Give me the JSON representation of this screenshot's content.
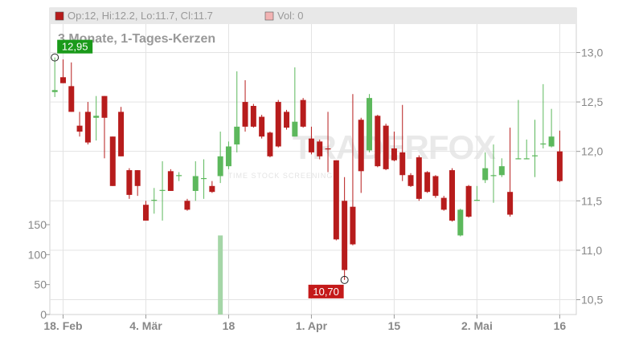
{
  "chart_data": {
    "type": "candlestick",
    "header": "Op:12, Hi:12.2, Lo:11.7, Cl:11.7",
    "volume_header": "Vol: 0",
    "subtitle": "3 Monate, 1-Tages-Kerzen",
    "watermark": "TRADERFOX",
    "watermark_sub": "TIME STOCK SCREENING",
    "up_color": "#5cb85c",
    "down_color": "#b71c1c",
    "volume_color": "#a5d6a7",
    "xlim": [
      -0.6,
      63
    ],
    "xticks": [
      {
        "value": 1,
        "label": "18. Feb"
      },
      {
        "value": 11,
        "label": "4. Mär"
      },
      {
        "value": 21,
        "label": "18"
      },
      {
        "value": 31,
        "label": "1. Apr"
      },
      {
        "value": 41,
        "label": "15"
      },
      {
        "value": 51,
        "label": "2. Mai"
      },
      {
        "value": 61,
        "label": "16"
      }
    ],
    "ylim": [
      10.35,
      13.45
    ],
    "yticks": [
      {
        "value": 13,
        "label": "13,0"
      },
      {
        "value": 12.5,
        "label": "12,5"
      },
      {
        "value": 12,
        "label": "12,0"
      },
      {
        "value": 11.5,
        "label": "11,5"
      },
      {
        "value": 11,
        "label": "11,0"
      },
      {
        "value": 10.5,
        "label": "10,5"
      }
    ],
    "y2lim": [
      0,
      150
    ],
    "y2ticks": [
      0,
      50,
      100,
      150
    ],
    "high_label": {
      "value": 12.95,
      "label": "12,95"
    },
    "low_label": {
      "value": 10.7,
      "label": "10,70"
    },
    "open": [
      12.6,
      12.75,
      12.66,
      12.26,
      12.4,
      12.34,
      12.56,
      12.15,
      12.4,
      11.81,
      11.81,
      11.46,
      11.5,
      11.6,
      11.8,
      11.75,
      11.5,
      11.6,
      11.72,
      11.65,
      11.75,
      11.85,
      12.07,
      12.5,
      12.46,
      12.35,
      12.19,
      12.5,
      12.4,
      12.15,
      12.52,
      12.13,
      12.1,
      12.03,
      11.91,
      11.5,
      11.44,
      12.32,
      12.01,
      12.36,
      12.26,
      12.03,
      11.99,
      11.76,
      11.94,
      11.79,
      11.75,
      11.53,
      11.81,
      11.15,
      11.65,
      11.5,
      11.71,
      11.75,
      11.76,
      11.59,
      11.92,
      11.92,
      11.95,
      12.07,
      12.05,
      12.0
    ],
    "high": [
      12.95,
      12.93,
      12.9,
      12.4,
      12.5,
      12.56,
      12.56,
      12.15,
      12.45,
      11.83,
      11.81,
      11.5,
      11.63,
      11.9,
      11.82,
      11.79,
      11.52,
      11.9,
      11.92,
      11.7,
      12.2,
      12.1,
      12.81,
      12.72,
      12.48,
      12.37,
      12.2,
      12.52,
      12.42,
      12.85,
      12.54,
      12.25,
      12.12,
      12.4,
      11.91,
      11.74,
      12.58,
      12.34,
      12.58,
      12.37,
      12.28,
      12.2,
      12.47,
      11.78,
      11.96,
      11.8,
      11.76,
      11.55,
      11.83,
      11.42,
      11.66,
      11.65,
      11.99,
      12.07,
      11.93,
      12.24,
      12.52,
      12.12,
      12.32,
      12.68,
      12.43,
      12.21
    ],
    "low": [
      12.55,
      12.69,
      12.4,
      12.15,
      12.07,
      12.11,
      11.93,
      11.65,
      11.95,
      11.52,
      11.55,
      11.3,
      11.37,
      11.3,
      11.6,
      11.7,
      11.4,
      11.5,
      11.52,
      11.58,
      11.68,
      11.82,
      11.99,
      12.2,
      12.24,
      12.13,
      11.94,
      12.04,
      12.22,
      12.15,
      12.24,
      11.97,
      11.92,
      11.79,
      11.1,
      10.7,
      11.05,
      11.58,
      11.99,
      11.84,
      11.81,
      11.9,
      11.7,
      11.64,
      11.5,
      11.58,
      11.53,
      11.4,
      11.29,
      11.14,
      11.33,
      11.5,
      11.68,
      11.48,
      11.74,
      11.34,
      11.92,
      11.92,
      11.74,
      12.03,
      12.04,
      11.69
    ],
    "close": [
      12.62,
      12.69,
      12.4,
      12.2,
      12.09,
      12.36,
      12.34,
      11.65,
      11.95,
      11.56,
      11.65,
      11.3,
      11.51,
      11.61,
      11.6,
      11.76,
      11.41,
      11.75,
      11.73,
      11.59,
      11.95,
      12.05,
      12.25,
      12.25,
      12.25,
      12.15,
      11.95,
      12.05,
      12.24,
      12.3,
      12.25,
      11.99,
      11.95,
      12.02,
      11.11,
      10.8,
      11.06,
      11.8,
      12.54,
      11.85,
      11.82,
      11.91,
      11.76,
      11.65,
      11.52,
      11.59,
      11.55,
      11.41,
      11.3,
      11.41,
      11.34,
      11.51,
      11.83,
      11.76,
      11.85,
      11.36,
      11.93,
      11.93,
      11.96,
      12.08,
      12.15,
      11.7
    ],
    "volume": [
      0,
      0,
      0,
      0,
      0,
      0,
      0,
      0,
      0,
      0,
      0,
      0,
      0,
      0,
      0,
      0,
      0,
      0,
      0,
      0,
      132,
      0,
      0,
      0,
      0,
      0,
      0,
      0,
      0,
      0,
      0,
      0,
      0,
      0,
      0,
      0,
      0,
      0,
      0,
      0,
      0,
      0,
      0,
      0,
      0,
      0,
      0,
      0,
      0,
      0,
      0,
      0,
      0,
      0,
      0,
      0,
      0,
      0,
      0,
      0,
      0,
      0
    ]
  }
}
